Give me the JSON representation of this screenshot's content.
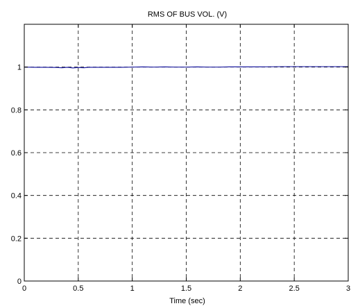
{
  "chart_data": {
    "type": "line",
    "title": "RMS OF BUS VOL. (V)",
    "xlabel": "Time (sec)",
    "ylabel": "",
    "xlim": [
      0,
      3
    ],
    "ylim": [
      0,
      1.2
    ],
    "grid": true,
    "x_ticks": [
      0,
      0.5,
      1,
      1.5,
      2,
      2.5,
      3
    ],
    "x_tick_labels": [
      "0",
      "0.5",
      "1",
      "1.5",
      "2",
      "2.5",
      "3"
    ],
    "y_ticks": [
      0,
      0.2,
      0.4,
      0.6,
      0.8,
      1
    ],
    "y_tick_labels": [
      "0",
      "0.2",
      "0.4",
      "0.6",
      "0.8",
      "1"
    ],
    "series": [
      {
        "color": "#1f1fa0",
        "x": [
          0,
          0.1,
          0.2,
          0.3,
          0.35,
          0.4,
          0.45,
          0.5,
          0.55,
          0.6,
          0.7,
          0.8,
          0.9,
          1.0,
          1.1,
          1.2,
          1.3,
          1.4,
          1.5,
          1.6,
          1.7,
          1.8,
          1.9,
          2.0,
          2.2,
          2.4,
          2.6,
          2.8,
          3.0
        ],
        "values": [
          1.0,
          0.999,
          0.999,
          0.998,
          0.997,
          0.999,
          0.996,
          0.998,
          0.997,
          0.999,
          0.999,
          0.999,
          0.999,
          1.0,
          1.001,
          1.0,
          1.001,
          1.0,
          1.0,
          1.001,
          1.0,
          1.0,
          1.001,
          1.001,
          1.001,
          1.002,
          1.002,
          1.002,
          1.002
        ]
      }
    ]
  }
}
